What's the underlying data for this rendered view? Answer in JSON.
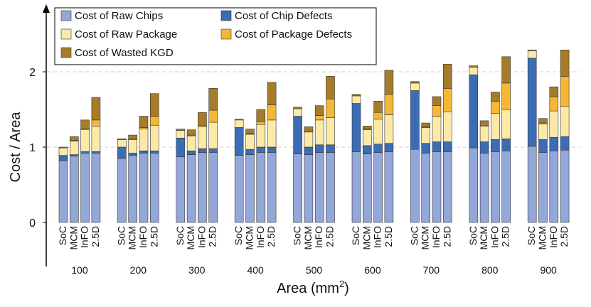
{
  "chart_data": {
    "type": "bar",
    "stacked": true,
    "ylabel": "Cost / Area",
    "xlabel_main": "Area (mm",
    "xlabel_sup": "2",
    "xlabel_close": ")",
    "ylim": [
      0,
      2.6
    ],
    "yticks": [
      "0",
      "1",
      "2"
    ],
    "grid": "horizontal dashed at 1 and 2",
    "legend_position": "top-left",
    "groups": [
      "100",
      "200",
      "300",
      "400",
      "500",
      "600",
      "700",
      "800",
      "900"
    ],
    "subcategories": [
      "SoC",
      "MCM",
      "InFO",
      "2.5D"
    ],
    "series": [
      {
        "name": "Cost of Raw Chips",
        "color": "#93a8d8",
        "values": [
          [
            0.82,
            0.88,
            0.92,
            0.92
          ],
          [
            0.85,
            0.89,
            0.92,
            0.92
          ],
          [
            0.87,
            0.9,
            0.93,
            0.93
          ],
          [
            0.89,
            0.9,
            0.93,
            0.93
          ],
          [
            0.91,
            0.9,
            0.93,
            0.93
          ],
          [
            0.94,
            0.91,
            0.93,
            0.94
          ],
          [
            0.97,
            0.92,
            0.94,
            0.94
          ],
          [
            0.99,
            0.92,
            0.94,
            0.95
          ],
          [
            1.01,
            0.93,
            0.95,
            0.96
          ]
        ]
      },
      {
        "name": "Cost of Chip Defects",
        "color": "#3c6cb4",
        "values": [
          [
            0.07,
            0.02,
            0.02,
            0.02
          ],
          [
            0.15,
            0.03,
            0.03,
            0.03
          ],
          [
            0.25,
            0.05,
            0.05,
            0.05
          ],
          [
            0.37,
            0.07,
            0.07,
            0.07
          ],
          [
            0.5,
            0.1,
            0.1,
            0.1
          ],
          [
            0.64,
            0.11,
            0.11,
            0.11
          ],
          [
            0.78,
            0.13,
            0.13,
            0.13
          ],
          [
            0.97,
            0.15,
            0.16,
            0.16
          ],
          [
            1.17,
            0.17,
            0.18,
            0.18
          ]
        ]
      },
      {
        "name": "Cost of Raw Package",
        "color": "#fbe9a8",
        "values": [
          [
            0.1,
            0.18,
            0.29,
            0.34
          ],
          [
            0.1,
            0.18,
            0.29,
            0.34
          ],
          [
            0.1,
            0.2,
            0.29,
            0.35
          ],
          [
            0.1,
            0.2,
            0.3,
            0.36
          ],
          [
            0.1,
            0.2,
            0.33,
            0.36
          ],
          [
            0.1,
            0.21,
            0.33,
            0.38
          ],
          [
            0.1,
            0.21,
            0.34,
            0.4
          ],
          [
            0.1,
            0.21,
            0.35,
            0.39
          ],
          [
            0.1,
            0.21,
            0.35,
            0.4
          ]
        ]
      },
      {
        "name": "Cost of Package Defects",
        "color": "#f5b835",
        "values": [
          [
            0.0,
            0.01,
            0.02,
            0.08
          ],
          [
            0.0,
            0.01,
            0.02,
            0.12
          ],
          [
            0.0,
            0.01,
            0.02,
            0.16
          ],
          [
            0.0,
            0.01,
            0.04,
            0.2
          ],
          [
            0.0,
            0.01,
            0.06,
            0.25
          ],
          [
            0.0,
            0.01,
            0.09,
            0.27
          ],
          [
            0.0,
            0.01,
            0.14,
            0.31
          ],
          [
            0.0,
            0.01,
            0.16,
            0.35
          ],
          [
            0.0,
            0.01,
            0.19,
            0.4
          ]
        ]
      },
      {
        "name": "Cost of Wasted KGD",
        "color": "#a67c2a",
        "values": [
          [
            0.01,
            0.05,
            0.11,
            0.3
          ],
          [
            0.01,
            0.05,
            0.15,
            0.3
          ],
          [
            0.02,
            0.07,
            0.17,
            0.29
          ],
          [
            0.01,
            0.06,
            0.16,
            0.3
          ],
          [
            0.02,
            0.06,
            0.13,
            0.3
          ],
          [
            0.02,
            0.04,
            0.15,
            0.32
          ],
          [
            0.02,
            0.05,
            0.12,
            0.32
          ],
          [
            0.02,
            0.06,
            0.12,
            0.35
          ],
          [
            0.01,
            0.06,
            0.13,
            0.35
          ]
        ]
      }
    ]
  }
}
